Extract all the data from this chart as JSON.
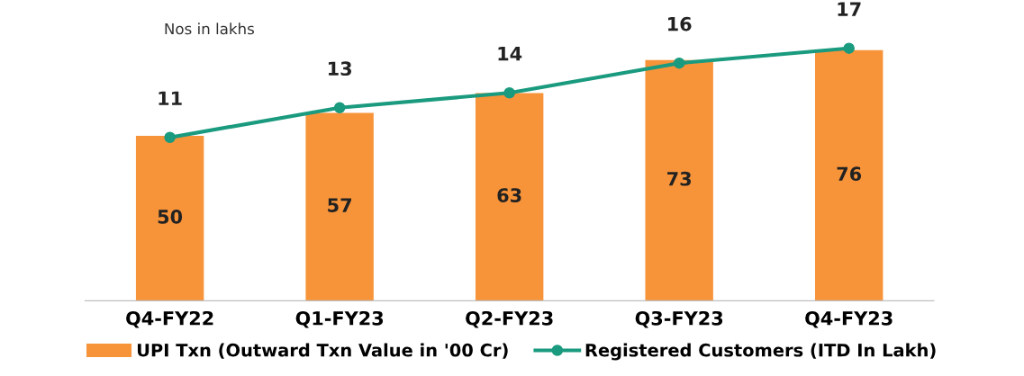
{
  "chart_data": {
    "type": "bar",
    "categories": [
      "Q4-FY22",
      "Q1-FY23",
      "Q2-FY23",
      "Q3-FY23",
      "Q4-FY23"
    ],
    "series": [
      {
        "name": "UPI Txn (Outward Txn Value in '00 Cr)",
        "type": "bar",
        "color": "#f7943a",
        "values": [
          50,
          57,
          63,
          73,
          76
        ]
      },
      {
        "name": "Registered Customers (ITD In Lakh)",
        "type": "line",
        "axis": "y2",
        "color": "#1a9a7e",
        "values": [
          11,
          13,
          14,
          16,
          17
        ]
      }
    ],
    "annotations": [
      "Nos in lakhs"
    ],
    "tick_labels": "x",
    "data_labels": true,
    "legend": "bottom",
    "marker": "circle",
    "line_style": "solid"
  }
}
